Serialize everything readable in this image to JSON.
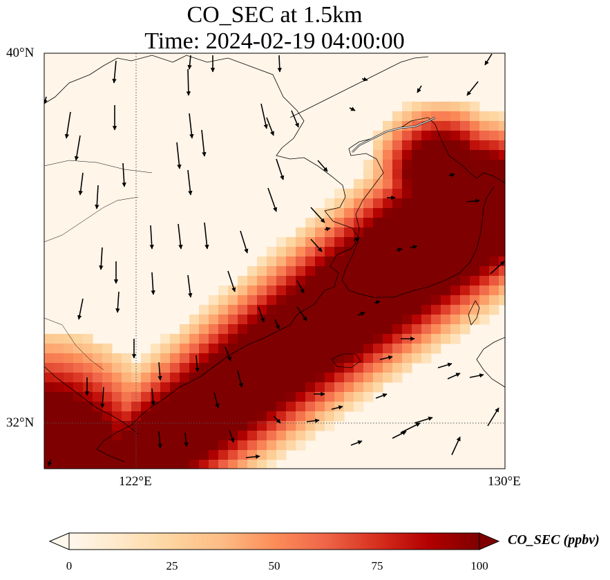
{
  "title": {
    "line1": "CO_SEC at 1.5km",
    "line2": "Time: 2024-02-19 04:00:00"
  },
  "map": {
    "extent": {
      "lon": [
        120,
        130
      ],
      "lat": [
        31,
        40
      ]
    },
    "lat_ticks": [
      {
        "value": 40,
        "label": "40°N"
      },
      {
        "value": 32,
        "label": "32°N"
      }
    ],
    "lon_ticks": [
      {
        "value": 122,
        "label": "122°E"
      },
      {
        "value": 130,
        "label": "130°E"
      }
    ],
    "gridlines": {
      "lon": 122,
      "lat": 32,
      "style": "dotted"
    },
    "field": "CO_SEC",
    "units": "ppbv",
    "plume_description_values": {
      "core_value_ppbv": 100,
      "background_value_ppbv": 5
    },
    "wind_vectors": "southward/southeastward over land, eastward/northeastward over sea"
  },
  "colorbar": {
    "label": "CO_SEC (ppbv)",
    "min": 0,
    "max": 100,
    "ticks": [
      "0",
      "25",
      "50",
      "75",
      "100"
    ],
    "colors": [
      "#fff7ec",
      "#fee8c8",
      "#fdd49e",
      "#fdbb84",
      "#fc8d59",
      "#ef6548",
      "#d7301f",
      "#b30000",
      "#7f0000"
    ],
    "extend": "both"
  }
}
